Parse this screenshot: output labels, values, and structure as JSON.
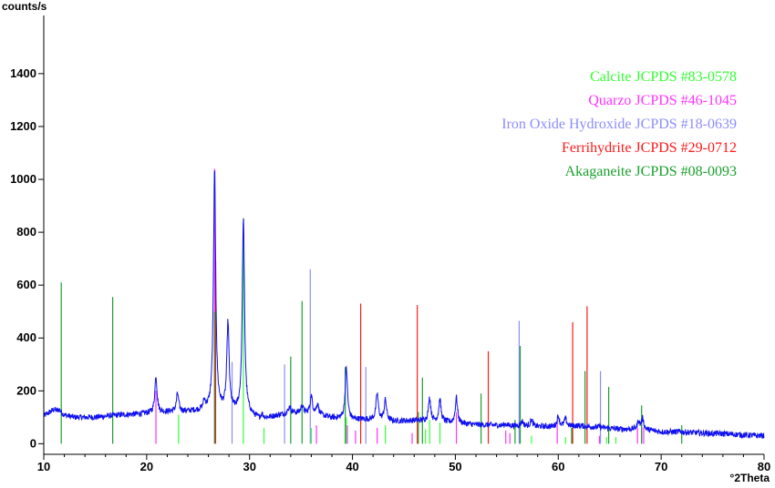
{
  "chart_data": {
    "type": "line",
    "ylabel": "counts/s",
    "xlabel": "°2Theta",
    "xlim": [
      10,
      80
    ],
    "ylim": [
      -40,
      1620
    ],
    "x_ticks": [
      10,
      20,
      30,
      40,
      50,
      60,
      70,
      80
    ],
    "y_ticks": [
      0,
      200,
      400,
      600,
      800,
      1000,
      1200,
      1400
    ],
    "grid": false,
    "legend_placement": "top-right",
    "pattern": {
      "color": "#1010ee",
      "background": [
        [
          10,
          105
        ],
        [
          11,
          130
        ],
        [
          12,
          108
        ],
        [
          13,
          100
        ],
        [
          15,
          100
        ],
        [
          17,
          108
        ],
        [
          19,
          112
        ],
        [
          20,
          115
        ],
        [
          22,
          120
        ],
        [
          24,
          122
        ],
        [
          26,
          125
        ],
        [
          28,
          125
        ],
        [
          30,
          110
        ],
        [
          31,
          92
        ],
        [
          32,
          100
        ],
        [
          34,
          118
        ],
        [
          36,
          115
        ],
        [
          38,
          98
        ],
        [
          40,
          92
        ],
        [
          42,
          92
        ],
        [
          44,
          85
        ],
        [
          46,
          88
        ],
        [
          48,
          85
        ],
        [
          50,
          78
        ],
        [
          52,
          72
        ],
        [
          54,
          70
        ],
        [
          56,
          68
        ],
        [
          58,
          65
        ],
        [
          60,
          65
        ],
        [
          62,
          68
        ],
        [
          64,
          62
        ],
        [
          66,
          55
        ],
        [
          68,
          55
        ],
        [
          70,
          45
        ],
        [
          72,
          45
        ],
        [
          74,
          40
        ],
        [
          76,
          38
        ],
        [
          78,
          33
        ],
        [
          80,
          30
        ]
      ],
      "peaks": [
        {
          "x": 11.5,
          "y": 130
        },
        {
          "x": 20.9,
          "y": 255
        },
        {
          "x": 23.0,
          "y": 190
        },
        {
          "x": 25.6,
          "y": 155
        },
        {
          "x": 26.6,
          "y": 1040
        },
        {
          "x": 27.9,
          "y": 455
        },
        {
          "x": 29.4,
          "y": 850
        },
        {
          "x": 31.2,
          "y": 110
        },
        {
          "x": 33.9,
          "y": 140
        },
        {
          "x": 35.1,
          "y": 145
        },
        {
          "x": 36.0,
          "y": 180
        },
        {
          "x": 36.6,
          "y": 150
        },
        {
          "x": 39.4,
          "y": 290
        },
        {
          "x": 42.4,
          "y": 190
        },
        {
          "x": 43.2,
          "y": 165
        },
        {
          "x": 47.5,
          "y": 175
        },
        {
          "x": 48.5,
          "y": 165
        },
        {
          "x": 50.1,
          "y": 175
        },
        {
          "x": 54.9,
          "y": 75
        },
        {
          "x": 56.5,
          "y": 85
        },
        {
          "x": 57.4,
          "y": 90
        },
        {
          "x": 60.0,
          "y": 105
        },
        {
          "x": 60.7,
          "y": 95
        },
        {
          "x": 64.0,
          "y": 65
        },
        {
          "x": 67.8,
          "y": 85
        },
        {
          "x": 68.2,
          "y": 95
        }
      ]
    },
    "series": [
      {
        "name": "Calcite JCPDS #83-0578",
        "color": "#33ff33",
        "sticks": [
          [
            23.1,
            110
          ],
          [
            29.4,
            850
          ],
          [
            31.4,
            60
          ],
          [
            36.0,
            60
          ],
          [
            39.4,
            100
          ],
          [
            43.2,
            70
          ],
          [
            47.1,
            55
          ],
          [
            47.5,
            90
          ],
          [
            48.5,
            80
          ],
          [
            57.4,
            30
          ],
          [
            60.7,
            25
          ],
          [
            61.4,
            30
          ],
          [
            64.7,
            25
          ],
          [
            65.6,
            25
          ]
        ]
      },
      {
        "name": "Quarzo JCPDS #46-1045",
        "color": "#ff33ff",
        "sticks": [
          [
            20.9,
            200
          ],
          [
            26.6,
            1040
          ],
          [
            36.5,
            70
          ],
          [
            39.5,
            70
          ],
          [
            40.3,
            50
          ],
          [
            42.4,
            60
          ],
          [
            45.8,
            40
          ],
          [
            50.1,
            120
          ],
          [
            54.9,
            50
          ],
          [
            55.3,
            40
          ],
          [
            59.9,
            90
          ],
          [
            64.0,
            30
          ],
          [
            67.7,
            60
          ],
          [
            68.1,
            70
          ],
          [
            68.3,
            60
          ]
        ]
      },
      {
        "name": "Iron Oxide Hydroxide JCPDS #18-0639",
        "color": "#8c8cff",
        "sticks": [
          [
            28.3,
            310
          ],
          [
            33.4,
            300
          ],
          [
            35.9,
            660
          ],
          [
            41.3,
            290
          ],
          [
            56.2,
            465
          ],
          [
            64.1,
            275
          ]
        ]
      },
      {
        "name": "Ferrihydrite JCPDS #29-0712",
        "color": "#ff1a1a",
        "sticks": [
          [
            26.7,
            690
          ],
          [
            40.8,
            530
          ],
          [
            46.3,
            525
          ],
          [
            53.2,
            350
          ],
          [
            61.4,
            460
          ],
          [
            62.8,
            520
          ]
        ]
      },
      {
        "name": "Akaganeite JCPDS #08-0093",
        "color": "#1a9f2d",
        "sticks": [
          [
            11.7,
            610
          ],
          [
            16.7,
            555
          ],
          [
            26.6,
            500
          ],
          [
            34.0,
            330
          ],
          [
            35.1,
            540
          ],
          [
            39.3,
            290
          ],
          [
            46.4,
            120
          ],
          [
            46.8,
            250
          ],
          [
            52.5,
            190
          ],
          [
            55.8,
            90
          ],
          [
            56.3,
            370
          ],
          [
            61.3,
            60
          ],
          [
            62.6,
            275
          ],
          [
            64.9,
            215
          ],
          [
            68.1,
            145
          ],
          [
            72.0,
            70
          ]
        ]
      }
    ]
  }
}
